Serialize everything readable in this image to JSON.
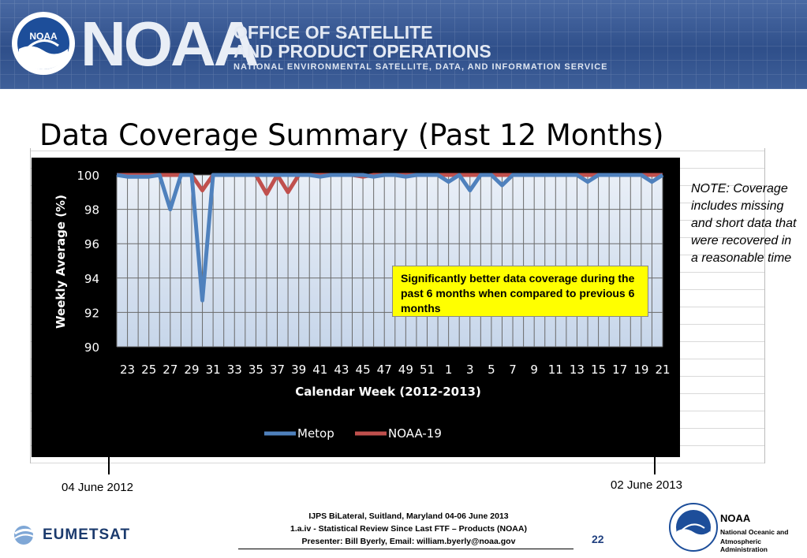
{
  "header": {
    "logo_text": "NOAA",
    "wordmark": "NOAA",
    "office_line1": "OFFICE OF SATELLITE",
    "office_line2": "AND PRODUCT OPERATIONS",
    "service_line": "NATIONAL ENVIRONMENTAL SATELLITE, DATA, AND INFORMATION SERVICE"
  },
  "slide": {
    "title": "Data Coverage Summary (Past 12 Months)"
  },
  "chart_data": {
    "type": "line",
    "title": "",
    "xlabel": "Calendar Week (2012-2013)",
    "ylabel": "Weekly Average (%)",
    "ylim": [
      90,
      100
    ],
    "yticks": [
      "90",
      "92",
      "94",
      "96",
      "98",
      "100"
    ],
    "x": [
      "22",
      "23",
      "24",
      "25",
      "26",
      "27",
      "28",
      "29",
      "30",
      "31",
      "32",
      "33",
      "34",
      "35",
      "36",
      "37",
      "38",
      "39",
      "40",
      "41",
      "42",
      "43",
      "44",
      "45",
      "46",
      "47",
      "48",
      "49",
      "50",
      "51",
      "52",
      "1",
      "2",
      "3",
      "4",
      "5",
      "6",
      "7",
      "8",
      "9",
      "10",
      "11",
      "12",
      "13",
      "14",
      "15",
      "16",
      "17",
      "18",
      "19",
      "20",
      "21"
    ],
    "xtick_labels": [
      "23",
      "25",
      "27",
      "29",
      "31",
      "33",
      "35",
      "37",
      "39",
      "41",
      "43",
      "45",
      "47",
      "49",
      "51",
      "1",
      "3",
      "5",
      "7",
      "9",
      "11",
      "13",
      "15",
      "17",
      "19",
      "21"
    ],
    "legend_position": "bottom",
    "grid": true,
    "series": [
      {
        "name": "Metop",
        "color": "#4f81bd",
        "values": [
          100,
          99.9,
          99.9,
          99.9,
          100,
          98,
          100,
          100,
          92.7,
          100,
          100,
          100,
          100,
          100,
          100,
          100,
          100,
          100,
          100,
          99.9,
          100,
          100,
          100,
          100,
          99.9,
          100,
          100,
          99.9,
          100,
          100,
          100,
          99.6,
          100,
          99.1,
          100,
          100,
          99.4,
          100,
          100,
          100,
          100,
          100,
          100,
          100,
          99.6,
          100,
          100,
          100,
          100,
          100,
          99.6,
          100
        ]
      },
      {
        "name": "NOAA-19",
        "color": "#c0504d",
        "values": [
          100,
          100,
          100,
          100,
          100,
          100,
          100,
          100,
          99.1,
          100,
          100,
          100,
          100,
          100,
          98.9,
          100,
          99,
          100,
          100,
          100,
          100,
          100,
          100,
          99.9,
          100,
          100,
          100,
          100,
          100,
          100,
          100,
          100,
          100,
          100,
          100,
          100,
          100,
          100,
          100,
          100,
          100,
          100,
          100,
          100,
          100,
          100,
          100,
          100,
          100,
          100,
          100,
          100
        ]
      }
    ],
    "annotation": "Significantly better data coverage during the past 6 months when compared to previous 6 months"
  },
  "note": "NOTE: Coverage includes missing and short data that were recovered in a reasonable time",
  "dates": {
    "start": "04 June 2012",
    "end": "02 June 2013"
  },
  "footer": {
    "left_logo": "EUMETSAT",
    "line1": "IJPS BiLateral, Suitland, Maryland 04-06 June 2013",
    "line2": "1.a.iv - Statistical Review Since Last FTF – Products (NOAA)",
    "line3": "Presenter: Bill Byerly, Email: william.byerly@noaa.gov",
    "page_number": "22",
    "right_org": "NOAA",
    "right_org_full1": "National Oceanic and",
    "right_org_full2": "Atmospheric Administration"
  }
}
